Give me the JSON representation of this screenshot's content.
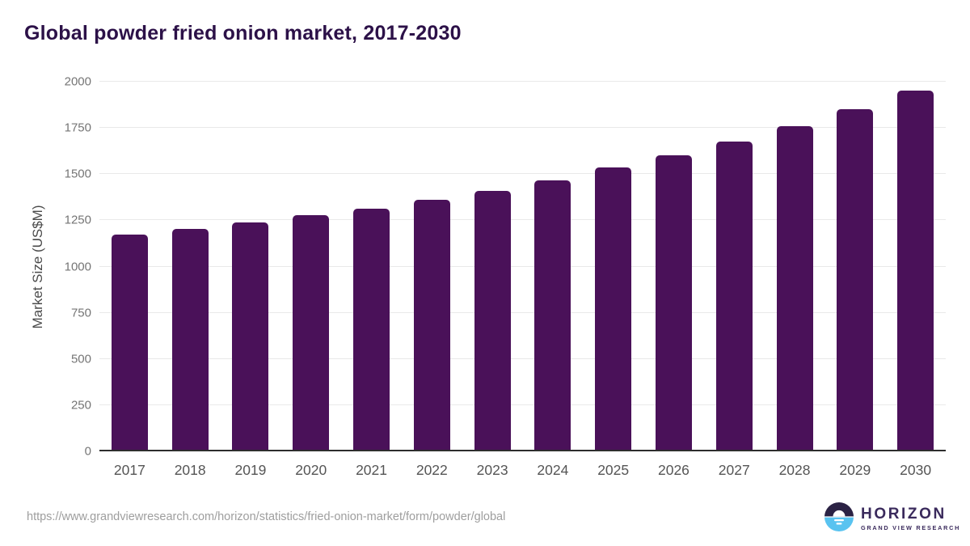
{
  "title": "Global powder fried onion market, 2017-2030",
  "chart_data": {
    "type": "bar",
    "title": "Global powder fried onion market, 2017-2030",
    "categories": [
      "2017",
      "2018",
      "2019",
      "2020",
      "2021",
      "2022",
      "2023",
      "2024",
      "2025",
      "2026",
      "2027",
      "2028",
      "2029",
      "2030"
    ],
    "values": [
      1175,
      1205,
      1240,
      1280,
      1315,
      1360,
      1410,
      1465,
      1535,
      1600,
      1675,
      1760,
      1850,
      1950
    ],
    "xlabel": "",
    "ylabel": "Market Size (US$M)",
    "ylim": [
      0,
      2000
    ],
    "yticks": [
      0,
      250,
      500,
      750,
      1000,
      1250,
      1500,
      1750,
      2000
    ],
    "grid": "horizontal",
    "legend": "none",
    "bar_color": "#4a1159",
    "gridline_color": "#e9e9e9",
    "baseline_color": "#2e2e2e"
  },
  "footer": {
    "source_url": "https://www.grandviewresearch.com/horizon/statistics/fried-onion-market/form/powder/global",
    "logo": {
      "name": "HORIZON",
      "subtitle": "GRAND VIEW RESEARCH",
      "icon": "sunrise-horizon-icon",
      "icon_top_color": "#2b2244",
      "icon_bottom_color": "#59c3f0"
    }
  },
  "colors": {
    "title_text": "#2c1148",
    "axis_title_text": "#4a4a4a",
    "ytick_text": "#757575",
    "xtick_text": "#555555",
    "source_text": "#9e9e9e",
    "background": "#ffffff"
  }
}
